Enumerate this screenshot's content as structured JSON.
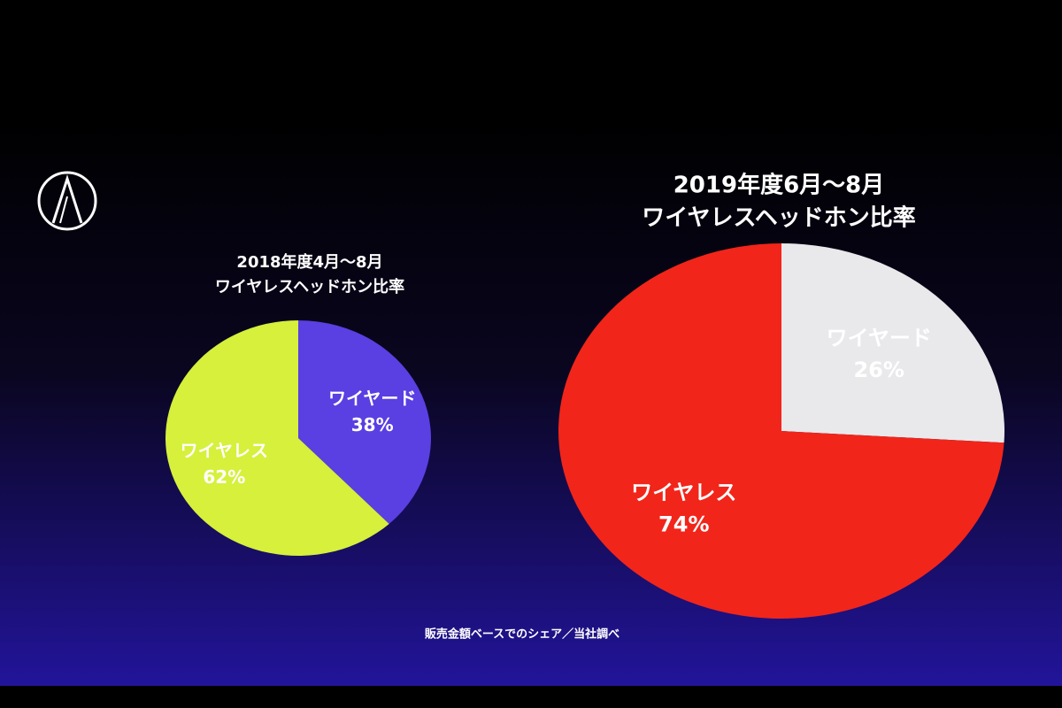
{
  "chart_data": [
    {
      "type": "pie",
      "title": "2018年度4月～8月",
      "subtitle": "ワイヤレスヘッドホン比率",
      "categories": [
        "ワイヤード",
        "ワイヤレス"
      ],
      "values": [
        38,
        62
      ],
      "value_labels": [
        "38%",
        "62%"
      ],
      "colors": [
        "#5a3fe2",
        "#d6f03c"
      ]
    },
    {
      "type": "pie",
      "title": "2019年度6月～8月",
      "subtitle": "ワイヤレスヘッドホン比率",
      "categories": [
        "ワイヤード",
        "ワイヤレス"
      ],
      "values": [
        26,
        74
      ],
      "value_labels": [
        "26%",
        "74%"
      ],
      "colors": [
        "#e9e9ec",
        "#f2251a"
      ]
    }
  ],
  "source": "販売金額ベースでのシェア／当社調べ"
}
